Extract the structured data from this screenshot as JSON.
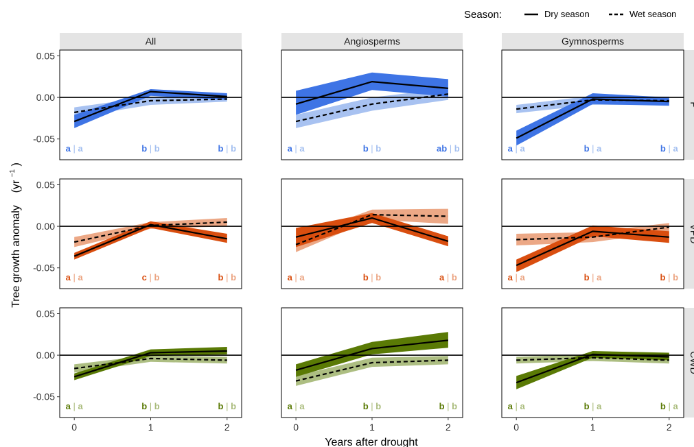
{
  "legend": {
    "title": "Season:",
    "items": [
      {
        "label": "Dry season",
        "dash": "solid"
      },
      {
        "label": "Wet season",
        "dash": "dashed"
      }
    ]
  },
  "axes": {
    "xlabel": "Years after drought",
    "ylabel_main": "Tree growth anomaly",
    "ylabel_unit_prefix": "(yr",
    "ylabel_unit_sup": "−1",
    "ylabel_unit_suffix": ")"
  },
  "colors": {
    "P": {
      "dry": "#3e74e5",
      "wet": "#a3bff0"
    },
    "VPD": {
      "dry": "#d94e0f",
      "wet": "#eba380"
    },
    "CWD": {
      "dry": "#5a7a05",
      "wet": "#a9bb7b"
    },
    "strip_bg": "#e4e4e4",
    "line": "#000000"
  },
  "chart_data": {
    "type": "line",
    "x": [
      0,
      1,
      2
    ],
    "xticks": [
      "0",
      "1",
      "2"
    ],
    "ylim": [
      -0.075,
      0.057
    ],
    "yticks": [
      0.05,
      0.0,
      -0.05
    ],
    "ytick_labels": [
      "0.05",
      "0.00",
      "-0.05"
    ],
    "grid": false,
    "legend_position": "top-right",
    "columns": [
      "All",
      "Angiosperms",
      "Gymnosperms"
    ],
    "rows": [
      "P",
      "VPD",
      "CWD"
    ],
    "panels": [
      {
        "row": "P",
        "col": "All",
        "dry": {
          "y": [
            -0.029,
            0.007,
            0.001
          ],
          "lo": [
            -0.037,
            0.002,
            -0.003
          ],
          "hi": [
            -0.021,
            0.01,
            0.005
          ]
        },
        "wet": {
          "y": [
            -0.018,
            -0.004,
            -0.002
          ],
          "lo": [
            -0.024,
            -0.009,
            -0.005
          ],
          "hi": [
            -0.012,
            0.001,
            0.002
          ]
        },
        "letters_dry": [
          "a",
          "b",
          "b"
        ],
        "letters_wet": [
          "a",
          "b",
          "b"
        ]
      },
      {
        "row": "P",
        "col": "Angiosperms",
        "dry": {
          "y": [
            -0.008,
            0.019,
            0.011
          ],
          "lo": [
            -0.021,
            0.009,
            0.001
          ],
          "hi": [
            0.008,
            0.03,
            0.022
          ]
        },
        "wet": {
          "y": [
            -0.029,
            -0.008,
            0.004
          ],
          "lo": [
            -0.037,
            -0.016,
            -0.003
          ],
          "hi": [
            -0.021,
            0.0,
            0.011
          ]
        },
        "letters_dry": [
          "a",
          "b",
          "ab"
        ],
        "letters_wet": [
          "a",
          "b",
          "b"
        ]
      },
      {
        "row": "P",
        "col": "Gymnosperms",
        "dry": {
          "y": [
            -0.049,
            -0.002,
            -0.005
          ],
          "lo": [
            -0.058,
            -0.008,
            -0.01
          ],
          "hi": [
            -0.04,
            0.005,
            0.0
          ]
        },
        "wet": {
          "y": [
            -0.014,
            -0.003,
            -0.004
          ],
          "lo": [
            -0.019,
            -0.009,
            -0.009
          ],
          "hi": [
            -0.009,
            0.002,
            0.001
          ]
        },
        "letters_dry": [
          "a",
          "b",
          "b"
        ],
        "letters_wet": [
          "a",
          "a",
          "a"
        ]
      },
      {
        "row": "VPD",
        "col": "All",
        "dry": {
          "y": [
            -0.036,
            0.002,
            -0.015
          ],
          "lo": [
            -0.04,
            -0.002,
            -0.02
          ],
          "hi": [
            -0.032,
            0.006,
            -0.009
          ]
        },
        "wet": {
          "y": [
            -0.019,
            0.001,
            0.005
          ],
          "lo": [
            -0.025,
            -0.003,
            0.0
          ],
          "hi": [
            -0.013,
            0.005,
            0.01
          ]
        },
        "letters_dry": [
          "a",
          "c",
          "b"
        ],
        "letters_wet": [
          "a",
          "b",
          "b"
        ]
      },
      {
        "row": "VPD",
        "col": "Angiosperms",
        "dry": {
          "y": [
            -0.013,
            0.01,
            -0.018
          ],
          "lo": [
            -0.025,
            0.004,
            -0.024
          ],
          "hi": [
            -0.002,
            0.016,
            -0.012
          ]
        },
        "wet": {
          "y": [
            -0.022,
            0.014,
            0.012
          ],
          "lo": [
            -0.031,
            0.008,
            0.003
          ],
          "hi": [
            -0.013,
            0.02,
            0.021
          ]
        },
        "letters_dry": [
          "a",
          "b",
          "a"
        ],
        "letters_wet": [
          "a",
          "b",
          "b"
        ]
      },
      {
        "row": "VPD",
        "col": "Gymnosperms",
        "dry": {
          "y": [
            -0.047,
            -0.006,
            -0.013
          ],
          "lo": [
            -0.055,
            -0.012,
            -0.02
          ],
          "hi": [
            -0.04,
            0.001,
            -0.006
          ]
        },
        "wet": {
          "y": [
            -0.016,
            -0.013,
            -0.001
          ],
          "lo": [
            -0.023,
            -0.019,
            -0.007
          ],
          "hi": [
            -0.009,
            -0.007,
            0.004
          ]
        },
        "letters_dry": [
          "a",
          "b",
          "b"
        ],
        "letters_wet": [
          "a",
          "a",
          "b"
        ]
      },
      {
        "row": "CWD",
        "col": "All",
        "dry": {
          "y": [
            -0.026,
            0.003,
            0.005
          ],
          "lo": [
            -0.03,
            -0.001,
            0.001
          ],
          "hi": [
            -0.022,
            0.007,
            0.01
          ]
        },
        "wet": {
          "y": [
            -0.016,
            -0.004,
            -0.006
          ],
          "lo": [
            -0.021,
            -0.008,
            -0.01
          ],
          "hi": [
            -0.011,
            0.0,
            -0.002
          ]
        },
        "letters_dry": [
          "a",
          "b",
          "b"
        ],
        "letters_wet": [
          "a",
          "b",
          "b"
        ]
      },
      {
        "row": "CWD",
        "col": "Angiosperms",
        "dry": {
          "y": [
            -0.018,
            0.008,
            0.018
          ],
          "lo": [
            -0.026,
            0.001,
            0.009
          ],
          "hi": [
            -0.011,
            0.016,
            0.028
          ]
        },
        "wet": {
          "y": [
            -0.031,
            -0.009,
            -0.006
          ],
          "lo": [
            -0.037,
            -0.014,
            -0.011
          ],
          "hi": [
            -0.025,
            -0.003,
            -0.001
          ]
        },
        "letters_dry": [
          "a",
          "b",
          "b"
        ],
        "letters_wet": [
          "a",
          "b",
          "b"
        ]
      },
      {
        "row": "CWD",
        "col": "Gymnosperms",
        "dry": {
          "y": [
            -0.033,
            0.001,
            -0.002
          ],
          "lo": [
            -0.041,
            -0.003,
            -0.006
          ],
          "hi": [
            -0.025,
            0.005,
            0.003
          ]
        },
        "wet": {
          "y": [
            -0.006,
            -0.003,
            -0.006
          ],
          "lo": [
            -0.01,
            -0.007,
            -0.01
          ],
          "hi": [
            -0.002,
            0.001,
            -0.002
          ]
        },
        "letters_dry": [
          "a",
          "b",
          "b"
        ],
        "letters_wet": [
          "a",
          "a",
          "a"
        ]
      }
    ]
  }
}
